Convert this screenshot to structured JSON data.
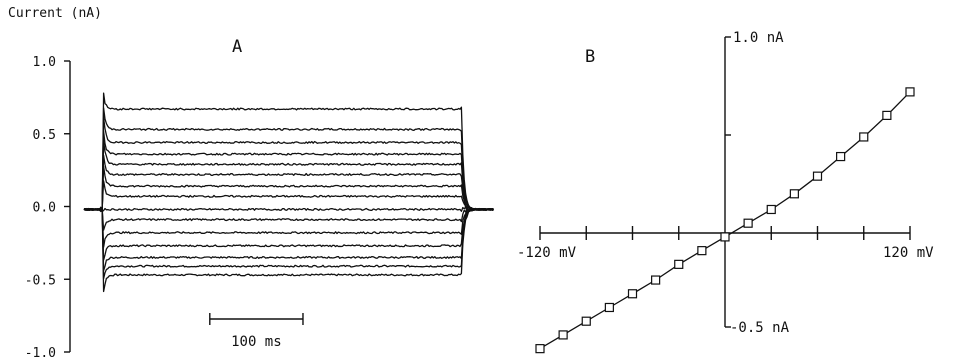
{
  "chart_data": [
    {
      "panel": "A",
      "type": "line",
      "ylabel": "Current (nA)",
      "ylim": [
        -1.0,
        1.0
      ],
      "yticks": [
        "1.0",
        "0.5",
        "0.0",
        "-0.5",
        "-1.0"
      ],
      "ytick_values": [
        1.0,
        0.5,
        0.0,
        -0.5,
        -1.0
      ],
      "xlim_ms": [
        0,
        440
      ],
      "pulse_ms": [
        20,
        405
      ],
      "holding_nA": -0.02,
      "steady_state_nA": [
        -0.47,
        -0.41,
        -0.35,
        -0.27,
        -0.18,
        -0.09,
        -0.02,
        0.07,
        0.14,
        0.22,
        0.29,
        0.36,
        0.44,
        0.53,
        0.67
      ],
      "peak_transient_nA": [
        -0.65,
        -0.56,
        -0.5,
        -0.42,
        -0.33,
        -0.22,
        -0.02,
        0.22,
        0.33,
        0.45,
        0.55,
        0.63,
        0.7,
        0.76,
        0.82
      ],
      "scalebar": {
        "label": "100 ms",
        "start_ms": 135,
        "length_ms": 100
      }
    },
    {
      "panel": "B",
      "type": "line",
      "xlim": [
        -120,
        120
      ],
      "ylim": [
        -0.5,
        1.0
      ],
      "x_neg_label": "-120 mV",
      "x_pos_label": "120 mV",
      "y_top_label": "1.0 nA",
      "y_bottom_label": "-0.5 nA",
      "x": [
        -120,
        -105,
        -90,
        -75,
        -60,
        -45,
        -30,
        -15,
        0,
        15,
        30,
        45,
        60,
        75,
        90,
        105,
        120
      ],
      "y": [
        -0.59,
        -0.52,
        -0.45,
        -0.38,
        -0.31,
        -0.24,
        -0.16,
        -0.09,
        -0.02,
        0.05,
        0.12,
        0.2,
        0.29,
        0.39,
        0.49,
        0.6,
        0.72
      ]
    }
  ]
}
